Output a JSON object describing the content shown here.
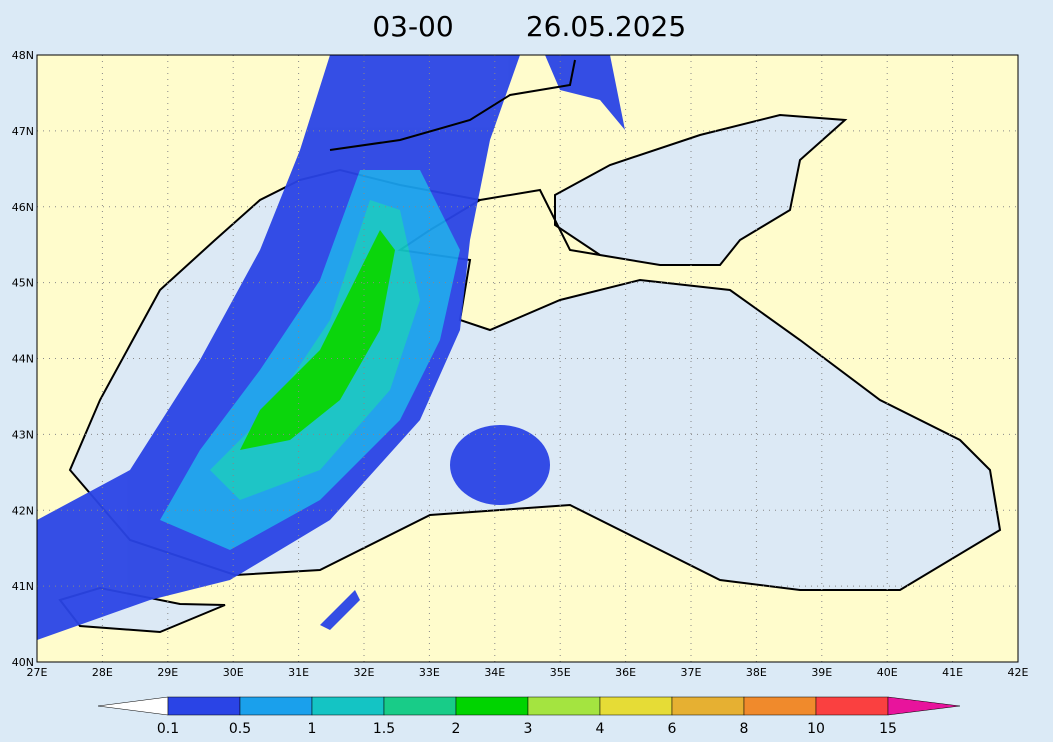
{
  "title": {
    "time": "03-00",
    "date": "26.05.2025"
  },
  "map": {
    "lat_labels": [
      "40N",
      "41N",
      "42N",
      "43N",
      "44N",
      "45N",
      "46N",
      "47N",
      "48N"
    ],
    "lon_labels": [
      "27E",
      "28E",
      "29E",
      "30E",
      "31E",
      "32E",
      "33E",
      "34E",
      "35E",
      "36E",
      "37E",
      "38E",
      "39E",
      "40E",
      "41E",
      "42E"
    ]
  },
  "legend": {
    "levels": [
      0.1,
      0.5,
      1,
      1.5,
      2,
      3,
      4,
      6,
      8,
      10,
      15
    ],
    "colors": [
      "#ffffff",
      "#2a44e6",
      "#1aa0ec",
      "#14c4c4",
      "#18cc88",
      "#00d400",
      "#a4e440",
      "#e6dc36",
      "#e6b032",
      "#f08a2c",
      "#fa4040",
      "#e8149c"
    ]
  }
}
